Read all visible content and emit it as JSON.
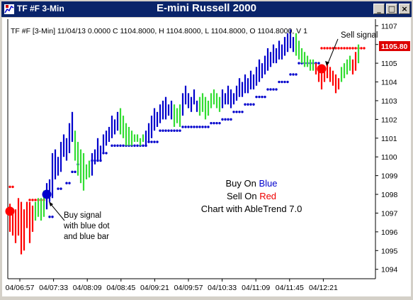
{
  "window": {
    "title_left": "TF #F 3-Min",
    "title_center": "E-mini Russell 2000",
    "controls": [
      "_",
      "□",
      "×"
    ]
  },
  "info_line": "TF #F [3-Min] 11/04/13  0.0000 C 1104.8000, H 1104.8000, L 1104.8000, O 1104.8000, V 1",
  "price_axis": {
    "ticks": [
      "1107",
      "1106",
      "1105",
      "1104",
      "1103",
      "1102",
      "1101",
      "1100",
      "1099",
      "1098",
      "1097",
      "1096",
      "1095",
      "1094"
    ],
    "current_price": "1105.80"
  },
  "time_axis": {
    "ticks": [
      "04/06:57",
      "04/07:33",
      "04/08:09",
      "04/08:45",
      "04/09:21",
      "04/09:57",
      "04/10:33",
      "04/11:09",
      "04/11:45",
      "04/12:21"
    ]
  },
  "annotations": {
    "buy": [
      "Buy signal",
      "with blue dot",
      "and blue bar"
    ],
    "sell": "Sell signal"
  },
  "legend": {
    "line1_prefix": "Buy On ",
    "line1_word": "Blue",
    "line2_prefix": "Sell On ",
    "line2_word": "Red",
    "line3": "Chart with AbleTrend 7.0"
  },
  "colors": {
    "titlebar": "#0a246a",
    "up_bar": "#0000cc",
    "down_bar": "#ff0000",
    "neutral_bar": "#33dd33",
    "buy_dot": "#0000cc",
    "sell_dot": "#ff0000"
  },
  "chart_data": {
    "type": "ohlc",
    "ylim": [
      1093.8,
      1107.2
    ],
    "signals": [
      {
        "kind": "sell",
        "bar": 0,
        "price": 1097.1
      },
      {
        "kind": "buy",
        "bar": 13,
        "price": 1098.0
      },
      {
        "kind": "sell",
        "bar": 110,
        "price": 1104.7
      }
    ],
    "bars": [
      {
        "c": "r",
        "h": 1097.5,
        "l": 1096.0
      },
      {
        "c": "r",
        "h": 1097.0,
        "l": 1095.8
      },
      {
        "c": "r",
        "h": 1097.2,
        "l": 1095.4
      },
      {
        "c": "r",
        "h": 1097.8,
        "l": 1095.8
      },
      {
        "c": "r",
        "h": 1097.6,
        "l": 1094.8
      },
      {
        "c": "r",
        "h": 1097.2,
        "l": 1095.0
      },
      {
        "c": "r",
        "h": 1097.6,
        "l": 1096.2
      },
      {
        "c": "r",
        "h": 1097.6,
        "l": 1095.4
      },
      {
        "c": "r",
        "h": 1097.4,
        "l": 1096.0
      },
      {
        "c": "g",
        "h": 1097.6,
        "l": 1096.6
      },
      {
        "c": "g",
        "h": 1097.8,
        "l": 1096.8
      },
      {
        "c": "g",
        "h": 1097.8,
        "l": 1096.6
      },
      {
        "c": "g",
        "h": 1098.2,
        "l": 1096.8
      },
      {
        "c": "b",
        "h": 1098.6,
        "l": 1097.2
      },
      {
        "c": "b",
        "h": 1098.8,
        "l": 1097.6
      },
      {
        "c": "b",
        "h": 1100.2,
        "l": 1097.8
      },
      {
        "c": "b",
        "h": 1100.4,
        "l": 1098.8
      },
      {
        "c": "b",
        "h": 1100.0,
        "l": 1099.0
      },
      {
        "c": "b",
        "h": 1100.8,
        "l": 1099.2
      },
      {
        "c": "b",
        "h": 1101.2,
        "l": 1100.0
      },
      {
        "c": "b",
        "h": 1101.0,
        "l": 1099.8
      },
      {
        "c": "b",
        "h": 1101.8,
        "l": 1100.2
      },
      {
        "c": "b",
        "h": 1102.4,
        "l": 1100.8
      },
      {
        "c": "g",
        "h": 1101.4,
        "l": 1099.8
      },
      {
        "c": "g",
        "h": 1100.8,
        "l": 1099.0
      },
      {
        "c": "g",
        "h": 1100.4,
        "l": 1098.6
      },
      {
        "c": "g",
        "h": 1100.2,
        "l": 1098.2
      },
      {
        "c": "g",
        "h": 1099.6,
        "l": 1098.8
      },
      {
        "c": "g",
        "h": 1099.8,
        "l": 1098.9
      },
      {
        "c": "b",
        "h": 1100.2,
        "l": 1099.0
      },
      {
        "c": "b",
        "h": 1100.4,
        "l": 1099.6
      },
      {
        "c": "b",
        "h": 1101.0,
        "l": 1099.8
      },
      {
        "c": "b",
        "h": 1100.6,
        "l": 1099.8
      },
      {
        "c": "b",
        "h": 1101.2,
        "l": 1100.2
      },
      {
        "c": "b",
        "h": 1101.4,
        "l": 1100.6
      },
      {
        "c": "b",
        "h": 1101.6,
        "l": 1100.8
      },
      {
        "c": "b",
        "h": 1102.2,
        "l": 1101.0
      },
      {
        "c": "b",
        "h": 1102.0,
        "l": 1101.2
      },
      {
        "c": "b",
        "h": 1102.4,
        "l": 1101.4
      },
      {
        "c": "g",
        "h": 1102.6,
        "l": 1101.2
      },
      {
        "c": "g",
        "h": 1102.2,
        "l": 1101.0
      },
      {
        "c": "g",
        "h": 1101.8,
        "l": 1100.6
      },
      {
        "c": "g",
        "h": 1101.6,
        "l": 1100.6
      },
      {
        "c": "g",
        "h": 1101.4,
        "l": 1100.6
      },
      {
        "c": "g",
        "h": 1101.2,
        "l": 1100.8
      },
      {
        "c": "g",
        "h": 1101.2,
        "l": 1100.8
      },
      {
        "c": "g",
        "h": 1101.0,
        "l": 1100.6
      },
      {
        "c": "g",
        "h": 1101.2,
        "l": 1100.8
      },
      {
        "c": "b",
        "h": 1101.4,
        "l": 1100.6
      },
      {
        "c": "b",
        "h": 1101.8,
        "l": 1100.8
      },
      {
        "c": "b",
        "h": 1102.2,
        "l": 1101.0
      },
      {
        "c": "b",
        "h": 1102.6,
        "l": 1101.4
      },
      {
        "c": "b",
        "h": 1102.4,
        "l": 1101.6
      },
      {
        "c": "b",
        "h": 1102.8,
        "l": 1101.8
      },
      {
        "c": "b",
        "h": 1103.0,
        "l": 1102.0
      },
      {
        "c": "b",
        "h": 1103.2,
        "l": 1102.0
      },
      {
        "c": "b",
        "h": 1102.8,
        "l": 1102.2
      },
      {
        "c": "b",
        "h": 1103.0,
        "l": 1102.0
      },
      {
        "c": "g",
        "h": 1102.8,
        "l": 1101.6
      },
      {
        "c": "g",
        "h": 1102.6,
        "l": 1101.8
      },
      {
        "c": "g",
        "h": 1102.8,
        "l": 1101.6
      },
      {
        "c": "b",
        "h": 1103.4,
        "l": 1102.2
      },
      {
        "c": "b",
        "h": 1103.8,
        "l": 1102.8
      },
      {
        "c": "b",
        "h": 1103.4,
        "l": 1102.6
      },
      {
        "c": "b",
        "h": 1103.2,
        "l": 1102.4
      },
      {
        "c": "b",
        "h": 1103.6,
        "l": 1102.8
      },
      {
        "c": "b",
        "h": 1103.0,
        "l": 1102.4
      },
      {
        "c": "g",
        "h": 1103.2,
        "l": 1102.2
      },
      {
        "c": "g",
        "h": 1103.4,
        "l": 1102.4
      },
      {
        "c": "g",
        "h": 1103.2,
        "l": 1102.0
      },
      {
        "c": "g",
        "h": 1103.0,
        "l": 1102.2
      },
      {
        "c": "g",
        "h": 1103.4,
        "l": 1102.6
      },
      {
        "c": "g",
        "h": 1103.6,
        "l": 1102.8
      },
      {
        "c": "g",
        "h": 1103.4,
        "l": 1102.6
      },
      {
        "c": "g",
        "h": 1103.2,
        "l": 1102.4
      },
      {
        "c": "b",
        "h": 1103.6,
        "l": 1102.6
      },
      {
        "c": "b",
        "h": 1103.4,
        "l": 1102.8
      },
      {
        "c": "b",
        "h": 1103.8,
        "l": 1102.8
      },
      {
        "c": "b",
        "h": 1103.6,
        "l": 1102.6
      },
      {
        "c": "b",
        "h": 1103.4,
        "l": 1102.8
      },
      {
        "c": "b",
        "h": 1103.8,
        "l": 1103.0
      },
      {
        "c": "b",
        "h": 1104.2,
        "l": 1103.2
      },
      {
        "c": "b",
        "h": 1104.0,
        "l": 1103.2
      },
      {
        "c": "b",
        "h": 1104.4,
        "l": 1103.4
      },
      {
        "c": "b",
        "h": 1104.2,
        "l": 1103.4
      },
      {
        "c": "b",
        "h": 1104.6,
        "l": 1103.6
      },
      {
        "c": "b",
        "h": 1104.4,
        "l": 1103.6
      },
      {
        "c": "b",
        "h": 1104.8,
        "l": 1103.8
      },
      {
        "c": "b",
        "h": 1105.2,
        "l": 1104.0
      },
      {
        "c": "b",
        "h": 1105.0,
        "l": 1104.2
      },
      {
        "c": "b",
        "h": 1105.4,
        "l": 1104.4
      },
      {
        "c": "b",
        "h": 1105.8,
        "l": 1104.6
      },
      {
        "c": "b",
        "h": 1105.6,
        "l": 1104.8
      },
      {
        "c": "b",
        "h": 1106.0,
        "l": 1105.0
      },
      {
        "c": "b",
        "h": 1105.8,
        "l": 1105.0
      },
      {
        "c": "b",
        "h": 1106.2,
        "l": 1105.2
      },
      {
        "c": "b",
        "h": 1106.0,
        "l": 1105.2
      },
      {
        "c": "b",
        "h": 1106.4,
        "l": 1105.4
      },
      {
        "c": "b",
        "h": 1106.6,
        "l": 1105.6
      },
      {
        "c": "b",
        "h": 1106.8,
        "l": 1105.8
      },
      {
        "c": "b",
        "h": 1106.4,
        "l": 1105.6
      },
      {
        "c": "g",
        "h": 1106.6,
        "l": 1105.4
      },
      {
        "c": "g",
        "h": 1106.2,
        "l": 1105.2
      },
      {
        "c": "g",
        "h": 1105.8,
        "l": 1105.0
      },
      {
        "c": "g",
        "h": 1105.6,
        "l": 1104.8
      },
      {
        "c": "g",
        "h": 1105.4,
        "l": 1104.8
      },
      {
        "c": "g",
        "h": 1105.2,
        "l": 1104.6
      },
      {
        "c": "g",
        "h": 1105.2,
        "l": 1104.6
      },
      {
        "c": "r",
        "h": 1105.0,
        "l": 1104.4
      },
      {
        "c": "r",
        "h": 1104.8,
        "l": 1104.0
      },
      {
        "c": "r",
        "h": 1104.6,
        "l": 1103.6
      },
      {
        "c": "r",
        "h": 1104.6,
        "l": 1104.0
      },
      {
        "c": "r",
        "h": 1105.0,
        "l": 1104.2
      },
      {
        "c": "r",
        "h": 1104.8,
        "l": 1104.0
      },
      {
        "c": "r",
        "h": 1104.6,
        "l": 1103.8
      },
      {
        "c": "r",
        "h": 1104.4,
        "l": 1103.4
      },
      {
        "c": "r",
        "h": 1104.2,
        "l": 1103.6
      },
      {
        "c": "g",
        "h": 1104.8,
        "l": 1104.0
      },
      {
        "c": "g",
        "h": 1105.0,
        "l": 1104.2
      },
      {
        "c": "g",
        "h": 1105.2,
        "l": 1104.4
      },
      {
        "c": "g",
        "h": 1105.4,
        "l": 1104.6
      },
      {
        "c": "r",
        "h": 1105.2,
        "l": 1104.4
      },
      {
        "c": "r",
        "h": 1105.6,
        "l": 1104.6
      },
      {
        "c": "g",
        "h": 1106.0,
        "l": 1105.0
      }
    ],
    "stops": [
      {
        "c": "r",
        "from": 0,
        "to": 1,
        "v": 1098.4
      },
      {
        "c": "r",
        "from": 7,
        "to": 12,
        "v": 1097.7
      },
      {
        "c": "b",
        "from": 14,
        "to": 15,
        "v": 1096.8
      },
      {
        "c": "b",
        "from": 17,
        "to": 18,
        "v": 1098.3
      },
      {
        "c": "b",
        "from": 20,
        "to": 21,
        "v": 1098.6
      },
      {
        "c": "b",
        "from": 22,
        "to": 23,
        "v": 1099.2
      },
      {
        "c": "b",
        "from": 24,
        "to": 24,
        "v": 1099.6
      },
      {
        "c": "b",
        "from": 29,
        "to": 32,
        "v": 1099.8
      },
      {
        "c": "b",
        "from": 33,
        "to": 34,
        "v": 1100.2
      },
      {
        "c": "b",
        "from": 36,
        "to": 40,
        "v": 1100.6
      },
      {
        "c": "b",
        "from": 41,
        "to": 48,
        "v": 1100.6
      },
      {
        "c": "b",
        "from": 49,
        "to": 52,
        "v": 1100.8
      },
      {
        "c": "b",
        "from": 53,
        "to": 60,
        "v": 1101.4
      },
      {
        "c": "b",
        "from": 61,
        "to": 70,
        "v": 1101.6
      },
      {
        "c": "b",
        "from": 71,
        "to": 74,
        "v": 1101.8
      },
      {
        "c": "b",
        "from": 75,
        "to": 78,
        "v": 1102.0
      },
      {
        "c": "b",
        "from": 79,
        "to": 82,
        "v": 1102.4
      },
      {
        "c": "b",
        "from": 83,
        "to": 86,
        "v": 1102.8
      },
      {
        "c": "b",
        "from": 87,
        "to": 90,
        "v": 1103.2
      },
      {
        "c": "b",
        "from": 91,
        "to": 94,
        "v": 1103.6
      },
      {
        "c": "b",
        "from": 95,
        "to": 98,
        "v": 1104.0
      },
      {
        "c": "b",
        "from": 99,
        "to": 101,
        "v": 1104.4
      },
      {
        "c": "b",
        "from": 102,
        "to": 109,
        "v": 1105.0
      },
      {
        "c": "r",
        "from": 110,
        "to": 125,
        "v": 1105.8
      }
    ]
  }
}
